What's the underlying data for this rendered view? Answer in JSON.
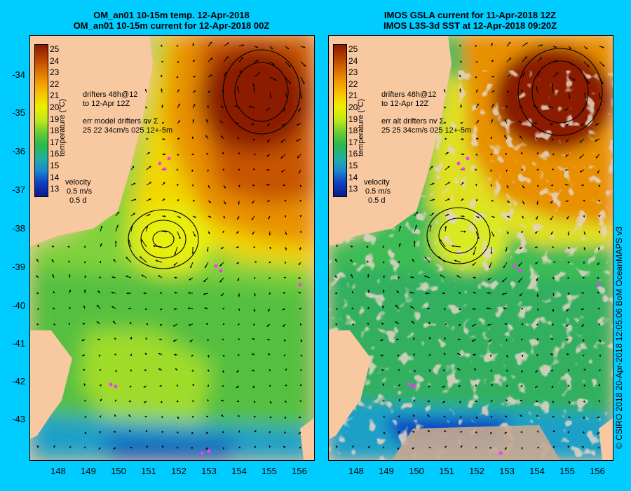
{
  "left_panel": {
    "title_line1": "OM_an01 10-15m temp. 12-Apr-2018",
    "title_line2": "OM_an01 10-15m current for 12-Apr-2018 00Z",
    "drifters_line1": "drifters 48h@12",
    "drifters_line2": "to 12-Apr 12Z",
    "err_line1": "err model drifters nv Σ",
    "err_line2": "25 22 34cm/s 025 12+-5m",
    "velocity_label": "velocity",
    "velocity_scale": "0.5 m/s",
    "velocity_days": "0.5 d"
  },
  "right_panel": {
    "title_line1": "IMOS GSLA current for 11-Apr-2018 12Z",
    "title_line2": "IMOS L3S-3d SST at 12-Apr-2018 09:20Z",
    "drifters_line1": "drifters 48h@12",
    "drifters_line2": "to 12-Apr 12Z",
    "err_line1": "err alt drifters nv Σ",
    "err_line2": "25 25 34cm/s 025 12+-5m",
    "velocity_label": "velocity",
    "velocity_scale": "0.5 m/s",
    "velocity_days": "0.5 d"
  },
  "colorbar": {
    "title": "temperature (°C)",
    "labels": [
      "25",
      "24",
      "23",
      "22",
      "21",
      "20",
      "19",
      "18",
      "17",
      "16",
      "15",
      "14",
      "13"
    ],
    "colors": [
      "#8b1a00",
      "#b33d00",
      "#d96a00",
      "#f29c00",
      "#f6c800",
      "#eeee00",
      "#bde71a",
      "#66cc33",
      "#2db84d",
      "#1fb0a0",
      "#1a88d0",
      "#1040c0",
      "#0a1a8a"
    ]
  },
  "y_axis_labels": [
    "-34",
    "-35",
    "-36",
    "-37",
    "-38",
    "-39",
    "-40",
    "-41",
    "-42",
    "-43"
  ],
  "x_axis_labels": [
    "148",
    "149",
    "150",
    "151",
    "152",
    "153",
    "154",
    "155",
    "156"
  ],
  "credit": "© CSIRO 2018   20-Apr-2018 12:05:06 BoM OceanMAPS v3",
  "colors": {
    "background": "#00ccff",
    "land": "#f8c8a0",
    "missing": "#c8a890"
  }
}
